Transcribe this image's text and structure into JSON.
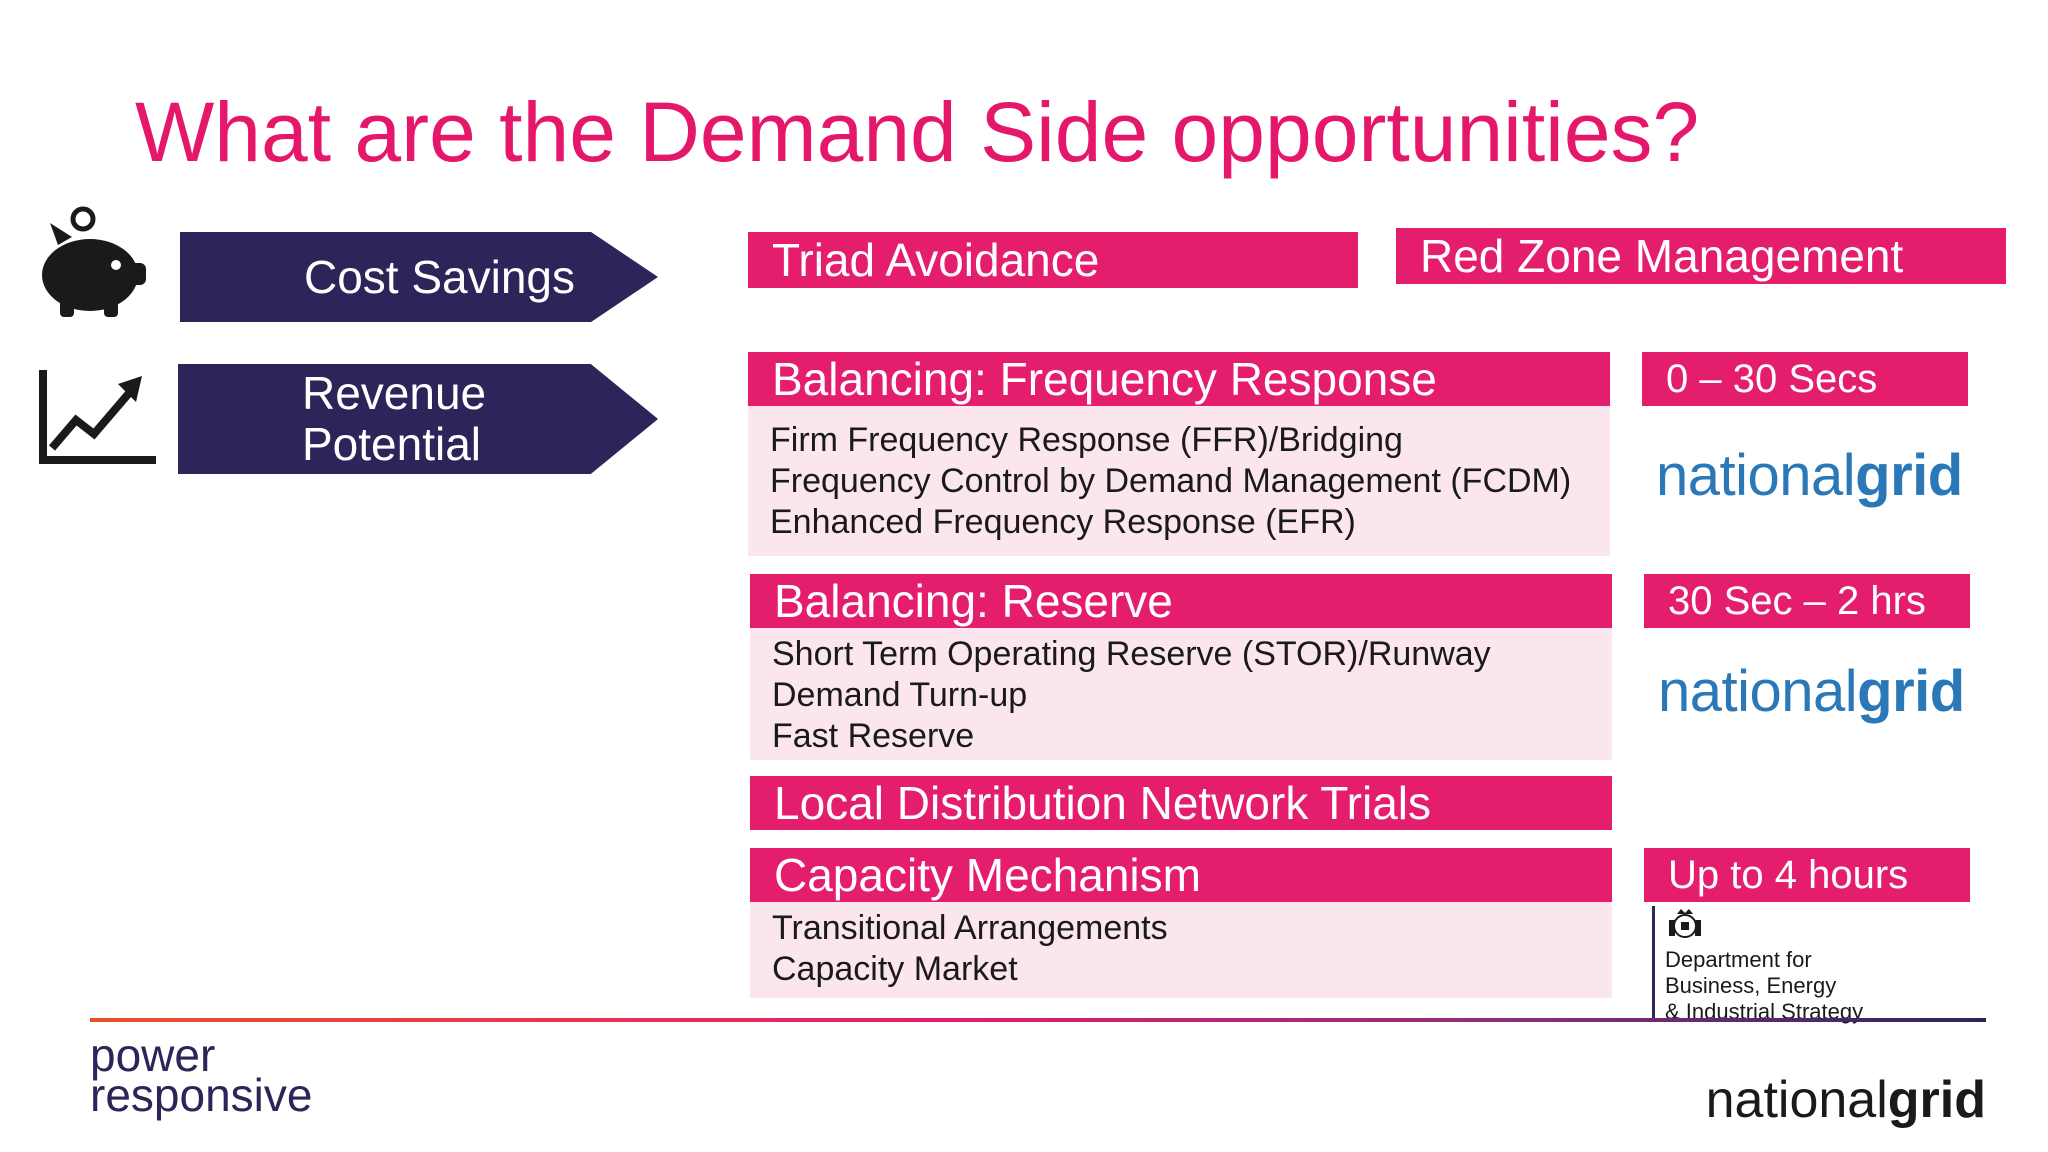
{
  "title": "What are the Demand Side opportunities?",
  "left": {
    "cost_savings": {
      "label": "Cost Savings",
      "icon": "piggy-bank-icon"
    },
    "revenue": {
      "label_line1": "Revenue",
      "label_line2": "Potential",
      "icon": "growth-chart-icon"
    }
  },
  "cost_items": {
    "triad": "Triad Avoidance",
    "red_zone": "Red Zone Management"
  },
  "frequency": {
    "header": "Balancing: Frequency Response",
    "items": [
      "Firm Frequency Response (FFR)/Bridging",
      "Frequency Control by Demand Management (FCDM)",
      "Enhanced Frequency Response (EFR)"
    ],
    "time": "0 – 30 Secs",
    "logo_part1": "national",
    "logo_part2": "grid"
  },
  "reserve": {
    "header": "Balancing: Reserve",
    "items": [
      "Short Term Operating Reserve (STOR)/Runway",
      "Demand Turn-up",
      "Fast Reserve"
    ],
    "time": "30 Sec – 2 hrs",
    "logo_part1": "national",
    "logo_part2": "grid"
  },
  "local": {
    "header": "Local Distribution Network Trials"
  },
  "capacity": {
    "header": "Capacity Mechanism",
    "items": [
      "Transitional Arrangements",
      "Capacity Market"
    ],
    "time": "Up to 4 hours",
    "beis": [
      "Department for",
      "Business, Energy",
      "& Industrial Strategy"
    ]
  },
  "footer": {
    "pr_line1": "power",
    "pr_line2": "responsive",
    "ng_part1": "national",
    "ng_part2": "grid"
  },
  "colors": {
    "pink": "#e41d6d",
    "navy": "#2b2559",
    "panel": "#fbe6ef",
    "ng_blue": "#2a78b7"
  }
}
